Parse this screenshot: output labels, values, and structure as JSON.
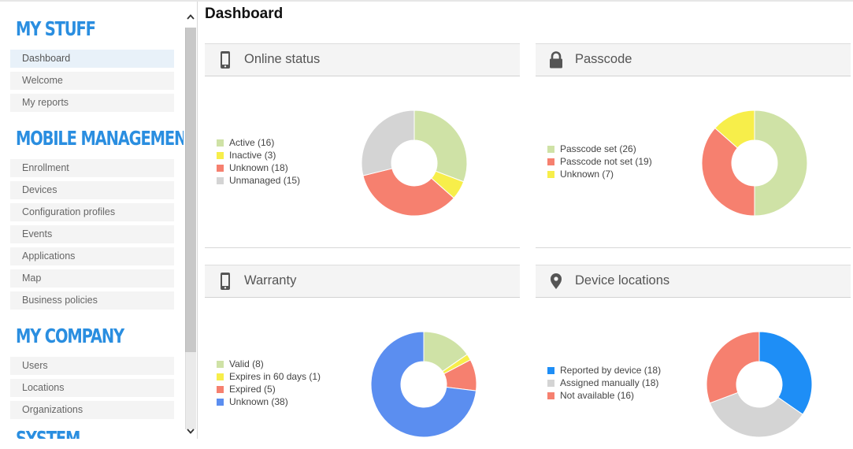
{
  "sidebar": {
    "sections": [
      {
        "title": "MY STUFF",
        "items": [
          "Dashboard",
          "Welcome",
          "My reports"
        ]
      },
      {
        "title": "MOBILE MANAGEMENT",
        "items": [
          "Enrollment",
          "Devices",
          "Configuration profiles",
          "Events",
          "Applications",
          "Map",
          "Business policies"
        ]
      },
      {
        "title": "MY COMPANY",
        "items": [
          "Users",
          "Locations",
          "Organizations"
        ]
      },
      {
        "title": "SYSTEM",
        "items": []
      }
    ],
    "active_item": "Dashboard"
  },
  "page": {
    "title": "Dashboard"
  },
  "panels": [
    {
      "title": "Online status",
      "icon": "mobile-phone-icon",
      "legend": [
        "Active (16)",
        "Inactive (3)",
        "Unknown (18)",
        "Unmanaged (15)"
      ],
      "values": [
        16,
        3,
        18,
        15
      ],
      "colors": [
        "#cfe2a6",
        "#f7ee4a",
        "#f6806f",
        "#d4d4d4"
      ]
    },
    {
      "title": "Passcode",
      "icon": "padlock-icon",
      "legend": [
        "Passcode set (26)",
        "Passcode not set (19)",
        "Unknown (7)"
      ],
      "values": [
        26,
        19,
        7
      ],
      "colors": [
        "#cfe2a6",
        "#f6806f",
        "#f7ee4a"
      ]
    },
    {
      "title": "Warranty",
      "icon": "mobile-phone-icon",
      "legend": [
        "Valid (8)",
        "Expires in 60 days (1)",
        "Expired (5)",
        "Unknown (38)"
      ],
      "values": [
        8,
        1,
        5,
        38
      ],
      "colors": [
        "#cfe2a6",
        "#f7ee4a",
        "#f6806f",
        "#5b8ef0"
      ]
    },
    {
      "title": "Device locations",
      "icon": "map-pin-icon",
      "legend": [
        "Reported by device (18)",
        "Assigned manually (18)",
        "Not available (16)"
      ],
      "values": [
        18,
        18,
        16
      ],
      "colors": [
        "#1e8ef6",
        "#d4d4d4",
        "#f6806f"
      ]
    }
  ]
}
